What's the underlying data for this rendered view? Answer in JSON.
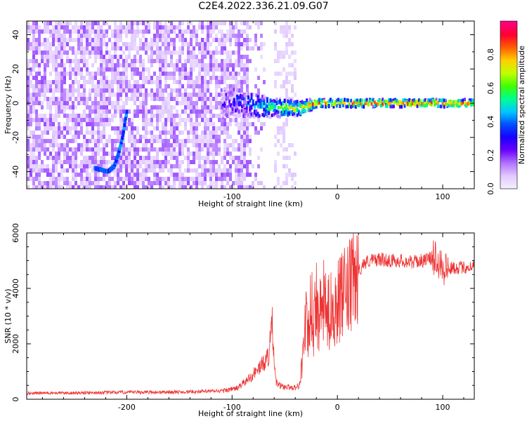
{
  "title": "C2E4.2022.336.21.09.G07",
  "chart_data": [
    {
      "type": "heatmap",
      "xlabel": "Height of straight line (km)",
      "ylabel": "Frequency (Hz)",
      "xlim": [
        -295,
        130
      ],
      "ylim": [
        -50,
        48
      ],
      "xticks": [
        -200,
        -100,
        0,
        100
      ],
      "yticks": [
        -40,
        -20,
        0,
        20,
        40
      ],
      "colorbar": {
        "label": "Normalized spectral amplitude",
        "range": [
          0,
          1
        ],
        "ticks": [
          "0.0",
          "0.2",
          "0.4",
          "0.6",
          "0.8"
        ],
        "colormap": [
          "#f5f0ff",
          "#e0c8ff",
          "#b070ff",
          "#6a00ff",
          "#1a00ff",
          "#0050ff",
          "#00c8ff",
          "#00ff90",
          "#40ff00",
          "#c0ff00",
          "#ffd000",
          "#ff6000",
          "#ff0030",
          "#ff0080"
        ]
      },
      "features": [
        {
          "name": "noise",
          "x_range": [
            -295,
            -85
          ],
          "freq_range": [
            -50,
            48
          ],
          "amplitude": 0.12
        },
        {
          "name": "curved streak",
          "x": [
            -230,
            -218,
            -212,
            -208,
            -204,
            -200
          ],
          "freq": [
            -38,
            -40,
            -37,
            -30,
            -20,
            -5
          ],
          "amplitude": 0.3
        },
        {
          "name": "carrier line",
          "x": [
            -110,
            -90,
            -70,
            -50,
            -35,
            -20,
            0,
            50,
            100,
            130
          ],
          "freq": [
            0,
            0,
            -2,
            -3,
            -3,
            0,
            0,
            0,
            0,
            0
          ],
          "amplitude": [
            0.2,
            0.35,
            0.5,
            0.65,
            0.75,
            0.85,
            0.92,
            0.9,
            0.88,
            0.85
          ]
        }
      ]
    },
    {
      "type": "line",
      "xlabel": "Height of straight line (km)",
      "ylabel": "SNR (10 * v/v)",
      "xlim": [
        -295,
        130
      ],
      "ylim": [
        0,
        6000
      ],
      "xticks": [
        -200,
        -100,
        0,
        100
      ],
      "yticks": [
        0,
        2000,
        4000,
        6000
      ],
      "series": [
        {
          "color": "#ee3333",
          "x": [
            -295,
            -250,
            -200,
            -150,
            -110,
            -95,
            -85,
            -80,
            -75,
            -70,
            -65,
            -62,
            -60,
            -58,
            -55,
            -50,
            -45,
            -40,
            -36,
            -33,
            -30,
            -28,
            -25,
            -22,
            -20,
            -18,
            -15,
            -12,
            -10,
            -5,
            0,
            5,
            10,
            15,
            20,
            25,
            30,
            40,
            50,
            60,
            70,
            80,
            90,
            95,
            100,
            105,
            110,
            120,
            130
          ],
          "y": [
            220,
            230,
            250,
            260,
            300,
            400,
            700,
            900,
            1100,
            1300,
            1600,
            2800,
            1200,
            600,
            500,
            450,
            430,
            420,
            500,
            1500,
            3000,
            2000,
            3500,
            2500,
            4000,
            2800,
            3200,
            3600,
            3000,
            3300,
            3500,
            3700,
            3900,
            4200,
            4600,
            4900,
            5000,
            5050,
            5000,
            5000,
            4950,
            5000,
            5100,
            5200,
            4800,
            4700,
            4750,
            4750,
            4800
          ]
        }
      ]
    }
  ]
}
